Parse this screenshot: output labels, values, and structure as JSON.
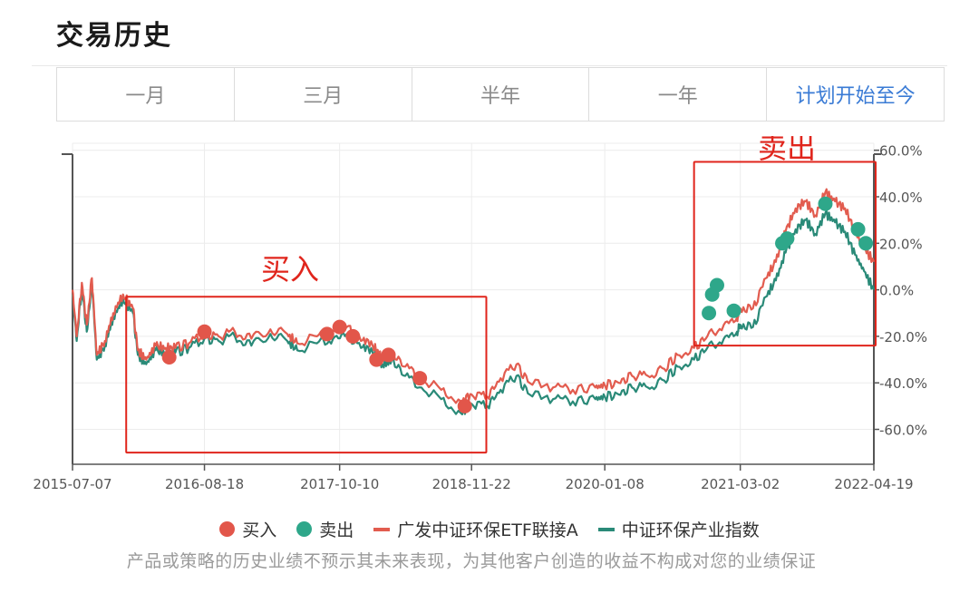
{
  "header": {
    "title": "交易历史"
  },
  "tabs": [
    {
      "label": "一月",
      "active": false
    },
    {
      "label": "三月",
      "active": false
    },
    {
      "label": "半年",
      "active": false
    },
    {
      "label": "一年",
      "active": false
    },
    {
      "label": "计划开始至今",
      "active": true
    }
  ],
  "colors": {
    "fund": "#e25c4f",
    "index": "#2a8a78",
    "buy": "#e2564a",
    "sell": "#2ea78a",
    "annotation": "#e0251c",
    "active_tab": "#3a7bd5"
  },
  "annotations": {
    "buy_label": "买入",
    "sell_label": "卖出"
  },
  "legend": {
    "buy": "买入",
    "sell": "卖出",
    "fund": "广发中证环保ETF联接A",
    "index": "中证环保产业指数"
  },
  "disclaimer": "产品或策略的历史业绩不预示其未来表现，为其他客户创造的收益不构成对您的业绩保证",
  "chart_data": {
    "type": "line",
    "x_axis": {
      "start": "2015-07-07",
      "end": "2022-04-19",
      "tick_labels": [
        "2015-07-07",
        "2016-08-18",
        "2017-10-10",
        "2018-11-22",
        "2020-01-08",
        "2021-03-02",
        "2022-04-19"
      ]
    },
    "y_axis": {
      "position": "right",
      "unit": "%",
      "ylim": [
        -75,
        63
      ],
      "ticks": [
        60,
        40,
        20,
        0,
        -20,
        -40,
        -60
      ],
      "tick_labels": [
        "60.0%",
        "40.0%",
        "20.0%",
        "0.0%",
        "-20.0%",
        "-40.0%",
        "-60.0%"
      ]
    },
    "grid": true,
    "legend_position": "bottom",
    "series": [
      {
        "name": "广发中证环保ETF联接A",
        "color": "#e25c4f",
        "points": [
          [
            "2015-07-07",
            0
          ],
          [
            "2015-07-20",
            -20
          ],
          [
            "2015-08-05",
            3
          ],
          [
            "2015-08-20",
            -15
          ],
          [
            "2015-09-05",
            5
          ],
          [
            "2015-09-20",
            -28
          ],
          [
            "2015-10-15",
            -22
          ],
          [
            "2015-11-10",
            -10
          ],
          [
            "2015-12-10",
            -2
          ],
          [
            "2016-01-10",
            -8
          ],
          [
            "2016-01-25",
            -26
          ],
          [
            "2016-02-20",
            -30
          ],
          [
            "2016-03-20",
            -24
          ],
          [
            "2016-04-20",
            -25
          ],
          [
            "2016-05-20",
            -25
          ],
          [
            "2016-07-01",
            -23
          ],
          [
            "2016-08-18",
            -19
          ],
          [
            "2016-10-01",
            -20
          ],
          [
            "2016-11-20",
            -18
          ],
          [
            "2017-01-10",
            -21
          ],
          [
            "2017-03-10",
            -17
          ],
          [
            "2017-05-01",
            -19
          ],
          [
            "2017-06-01",
            -23
          ],
          [
            "2017-08-01",
            -20
          ],
          [
            "2017-09-20",
            -18
          ],
          [
            "2017-11-01",
            -16
          ],
          [
            "2017-12-15",
            -22
          ],
          [
            "2018-01-20",
            -24
          ],
          [
            "2018-02-20",
            -29
          ],
          [
            "2018-03-20",
            -27
          ],
          [
            "2018-05-01",
            -33
          ],
          [
            "2018-06-20",
            -38
          ],
          [
            "2018-08-20",
            -43
          ],
          [
            "2018-10-20",
            -48
          ],
          [
            "2018-11-22",
            -45
          ],
          [
            "2019-01-10",
            -46
          ],
          [
            "2019-02-20",
            -38
          ],
          [
            "2019-04-10",
            -32
          ],
          [
            "2019-05-20",
            -40
          ],
          [
            "2019-08-01",
            -42
          ],
          [
            "2019-10-01",
            -43
          ],
          [
            "2019-12-10",
            -42
          ],
          [
            "2020-01-08",
            -41
          ],
          [
            "2020-02-20",
            -40
          ],
          [
            "2020-04-01",
            -37
          ],
          [
            "2020-05-20",
            -37
          ],
          [
            "2020-07-10",
            -34
          ],
          [
            "2020-08-20",
            -28
          ],
          [
            "2020-10-10",
            -25
          ],
          [
            "2020-11-20",
            -20
          ],
          [
            "2021-01-10",
            -15
          ],
          [
            "2021-02-20",
            -12
          ],
          [
            "2021-03-02",
            -8
          ],
          [
            "2021-04-10",
            -8
          ],
          [
            "2021-05-20",
            5
          ],
          [
            "2021-06-20",
            12
          ],
          [
            "2021-07-20",
            25
          ],
          [
            "2021-08-20",
            35
          ],
          [
            "2021-09-20",
            38
          ],
          [
            "2021-10-20",
            32
          ],
          [
            "2021-11-20",
            42
          ],
          [
            "2021-12-20",
            38
          ],
          [
            "2022-01-20",
            35
          ],
          [
            "2022-02-20",
            25
          ],
          [
            "2022-03-20",
            18
          ],
          [
            "2022-04-19",
            12
          ]
        ]
      },
      {
        "name": "中证环保产业指数",
        "color": "#2a8a78",
        "points": [
          [
            "2015-07-07",
            -2
          ],
          [
            "2015-07-20",
            -22
          ],
          [
            "2015-08-05",
            1
          ],
          [
            "2015-08-20",
            -18
          ],
          [
            "2015-09-05",
            3
          ],
          [
            "2015-09-20",
            -30
          ],
          [
            "2015-10-15",
            -24
          ],
          [
            "2015-11-10",
            -12
          ],
          [
            "2015-12-10",
            -4
          ],
          [
            "2016-01-10",
            -10
          ],
          [
            "2016-01-25",
            -28
          ],
          [
            "2016-02-20",
            -32
          ],
          [
            "2016-03-20",
            -26
          ],
          [
            "2016-04-20",
            -27
          ],
          [
            "2016-05-20",
            -27
          ],
          [
            "2016-07-01",
            -25
          ],
          [
            "2016-08-18",
            -21
          ],
          [
            "2016-10-01",
            -22
          ],
          [
            "2016-11-20",
            -20
          ],
          [
            "2017-01-10",
            -24
          ],
          [
            "2017-03-10",
            -19
          ],
          [
            "2017-05-01",
            -22
          ],
          [
            "2017-06-01",
            -26
          ],
          [
            "2017-08-01",
            -23
          ],
          [
            "2017-09-20",
            -21
          ],
          [
            "2017-11-01",
            -19
          ],
          [
            "2017-12-15",
            -25
          ],
          [
            "2018-01-20",
            -27
          ],
          [
            "2018-02-20",
            -32
          ],
          [
            "2018-03-20",
            -30
          ],
          [
            "2018-05-01",
            -37
          ],
          [
            "2018-06-20",
            -42
          ],
          [
            "2018-08-20",
            -47
          ],
          [
            "2018-10-20",
            -53
          ],
          [
            "2018-11-22",
            -49
          ],
          [
            "2019-01-10",
            -50
          ],
          [
            "2019-02-20",
            -43
          ],
          [
            "2019-04-10",
            -37
          ],
          [
            "2019-05-20",
            -45
          ],
          [
            "2019-08-01",
            -47
          ],
          [
            "2019-10-01",
            -48
          ],
          [
            "2019-12-10",
            -47
          ],
          [
            "2020-01-08",
            -46
          ],
          [
            "2020-02-20",
            -45
          ],
          [
            "2020-04-01",
            -42
          ],
          [
            "2020-05-20",
            -42
          ],
          [
            "2020-07-10",
            -39
          ],
          [
            "2020-08-20",
            -33
          ],
          [
            "2020-10-10",
            -30
          ],
          [
            "2020-11-20",
            -25
          ],
          [
            "2021-01-10",
            -21
          ],
          [
            "2021-02-20",
            -18
          ],
          [
            "2021-03-02",
            -15
          ],
          [
            "2021-04-10",
            -16
          ],
          [
            "2021-05-20",
            -3
          ],
          [
            "2021-06-20",
            4
          ],
          [
            "2021-07-20",
            16
          ],
          [
            "2021-08-20",
            26
          ],
          [
            "2021-09-20",
            30
          ],
          [
            "2021-10-20",
            24
          ],
          [
            "2021-11-20",
            33
          ],
          [
            "2021-12-20",
            29
          ],
          [
            "2022-01-20",
            25
          ],
          [
            "2022-02-20",
            15
          ],
          [
            "2022-03-20",
            8
          ],
          [
            "2022-04-19",
            0
          ]
        ]
      }
    ],
    "buy_points": [
      [
        "2016-05-01",
        -29
      ],
      [
        "2016-08-18",
        -18
      ],
      [
        "2017-09-01",
        -19
      ],
      [
        "2017-10-10",
        -16
      ],
      [
        "2017-11-20",
        -20
      ],
      [
        "2018-02-01",
        -30
      ],
      [
        "2018-03-10",
        -28
      ],
      [
        "2018-06-15",
        -38
      ],
      [
        "2018-11-01",
        -50
      ]
    ],
    "sell_points": [
      [
        "2020-11-25",
        -10
      ],
      [
        "2020-12-05",
        -2
      ],
      [
        "2020-12-20",
        2
      ],
      [
        "2021-02-10",
        -9
      ],
      [
        "2021-07-10",
        20
      ],
      [
        "2021-07-25",
        22
      ],
      [
        "2021-11-20",
        37
      ],
      [
        "2022-03-01",
        26
      ],
      [
        "2022-03-25",
        20
      ]
    ],
    "highlight_boxes": [
      {
        "label": "买入",
        "x_range": [
          "2015-12-20",
          "2019-01-01"
        ],
        "y_range": [
          -70,
          -3
        ]
      },
      {
        "label": "卖出",
        "x_range": [
          "2020-10-10",
          "2022-04-19"
        ],
        "y_range": [
          -24,
          55
        ]
      }
    ]
  }
}
